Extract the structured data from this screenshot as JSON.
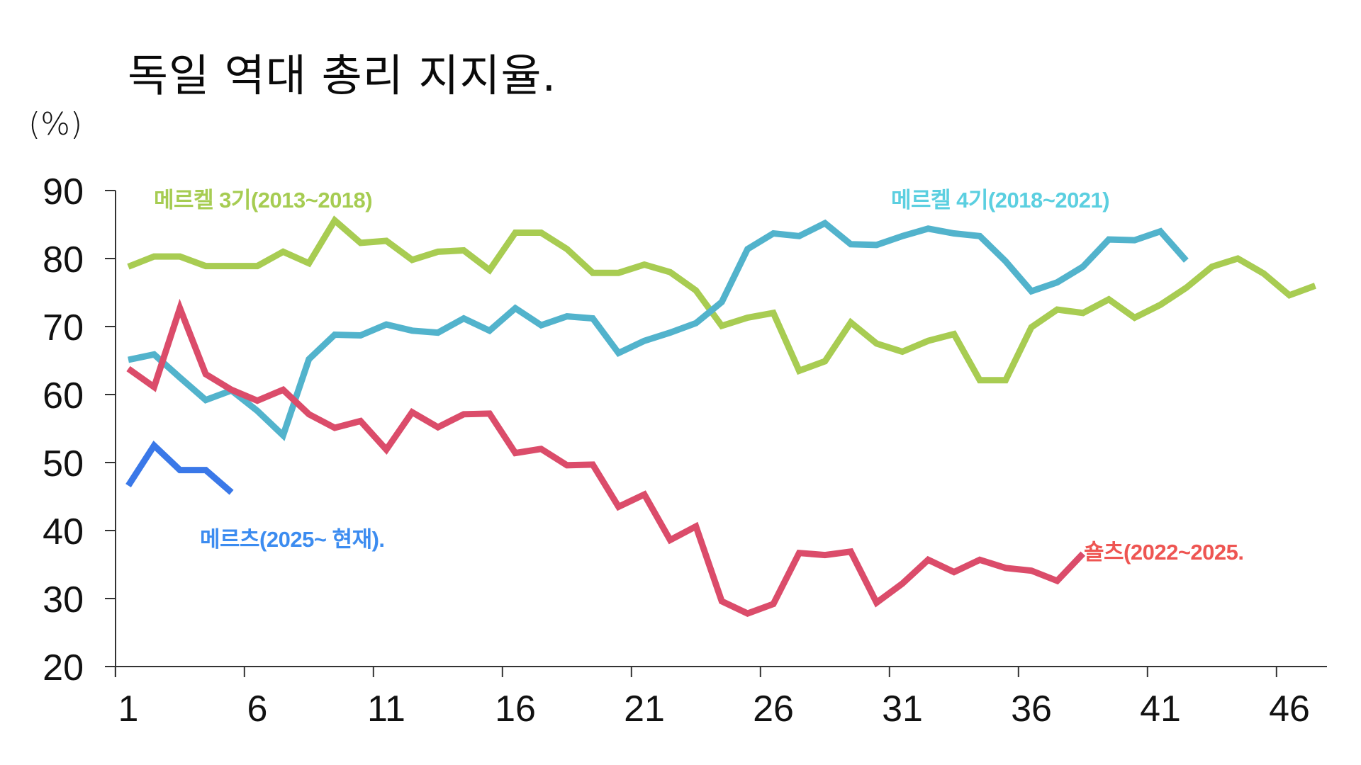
{
  "header": {
    "title": "독일 역대 총리 지지율.",
    "unit": "(%)"
  },
  "chart_data": {
    "type": "line",
    "title": "독일 역대 총리 지지율.",
    "xlabel": "",
    "ylabel": "(%)",
    "ylim": [
      20,
      90
    ],
    "yticks": [
      "20",
      "30",
      "40",
      "50",
      "60",
      "70",
      "80",
      "90"
    ],
    "xlim": [
      1,
      47
    ],
    "xticks": [
      "1",
      "6",
      "11",
      "16",
      "21",
      "26",
      "31",
      "36",
      "41",
      "46"
    ],
    "grid": false,
    "legend": "inline labels near each series",
    "series": [
      {
        "name": "메르켈 3기(2013~2018)",
        "color": "#a8cc52",
        "label_color": "#a6cc52",
        "values": [
          78.8,
          80.3,
          80.3,
          78.9,
          78.9,
          78.9,
          81.0,
          79.3,
          85.6,
          82.3,
          82.6,
          79.8,
          81.0,
          81.2,
          78.3,
          83.8,
          83.8,
          81.4,
          77.9,
          77.9,
          79.1,
          78.0,
          75.3,
          70.1,
          71.3,
          72.0,
          63.5,
          64.9,
          70.6,
          67.5,
          66.3,
          67.9,
          68.9,
          62.1,
          62.1,
          69.9,
          72.5,
          72.0,
          74.0,
          71.3,
          73.2,
          75.7,
          78.8,
          80.0,
          77.8,
          74.6,
          76.0
        ]
      },
      {
        "name": "메르켈 4기(2018~2021)",
        "color": "#52b3cc",
        "label_color": "#5bcfe0",
        "values": [
          65.1,
          65.9,
          62.5,
          59.2,
          60.6,
          57.6,
          54.0,
          65.2,
          68.8,
          68.7,
          70.3,
          69.4,
          69.1,
          71.2,
          69.4,
          72.7,
          70.2,
          71.5,
          71.2,
          66.1,
          67.9,
          69.1,
          70.5,
          73.6,
          81.4,
          83.7,
          83.3,
          85.2,
          82.1,
          82.0,
          83.3,
          84.4,
          83.7,
          83.3,
          79.6,
          75.2,
          76.5,
          78.8,
          82.8,
          82.7,
          84.0,
          79.7
        ]
      },
      {
        "name": "숄츠(2022~2025.",
        "color": "#db4c6a",
        "label_color": "#ee5552",
        "values": [
          63.8,
          61.1,
          72.7,
          63.0,
          60.7,
          59.1,
          60.7,
          57.1,
          55.1,
          56.1,
          51.9,
          57.4,
          55.2,
          57.1,
          57.2,
          51.4,
          52.0,
          49.6,
          49.7,
          43.5,
          45.3,
          38.6,
          40.6,
          29.6,
          27.8,
          29.2,
          36.7,
          36.4,
          36.9,
          29.4,
          32.2,
          35.7,
          33.9,
          35.7,
          34.5,
          34.1,
          32.6,
          36.6
        ]
      },
      {
        "name": "메르츠(2025~ 현재).",
        "color": "#3a78e8",
        "label_color": "#3c8cf0",
        "values": [
          46.6,
          52.5,
          48.9,
          48.9,
          45.6
        ]
      }
    ]
  }
}
